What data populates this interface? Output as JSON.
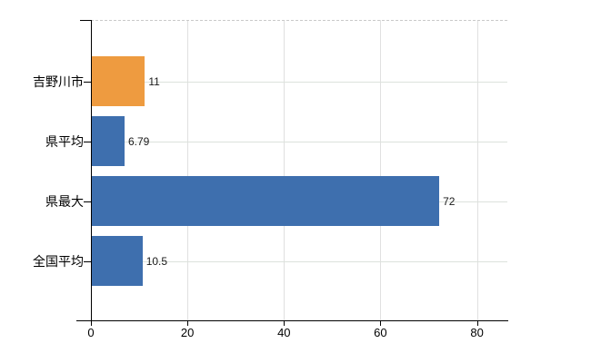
{
  "chart_data": {
    "type": "bar",
    "orientation": "horizontal",
    "title": "",
    "xlabel": "",
    "ylabel": "",
    "categories": [
      "吉野川市",
      "県平均",
      "県最大",
      "全国平均"
    ],
    "values": [
      11,
      6.79,
      72,
      10.5
    ],
    "value_labels": [
      "11",
      "6.79",
      "72",
      "10.5"
    ],
    "bar_colors": [
      "#ee9b40",
      "#3e6fae",
      "#3e6fae",
      "#3e6fae"
    ],
    "xticks": [
      0,
      20,
      40,
      60,
      80
    ],
    "xtick_labels": [
      "0",
      "20",
      "40",
      "60",
      "80"
    ],
    "xlim": [
      0,
      86.3
    ],
    "grid": true,
    "legend": false
  },
  "colors": {
    "background": "#ffffff",
    "axis": "#000000",
    "grid_vertical": "#e0e0e0",
    "grid_horizontal": "#dce2dc",
    "top_border": "#c9c9c9",
    "category_text": "#000000",
    "value_text": "#1a1a1a",
    "tick_text": "#000000"
  }
}
